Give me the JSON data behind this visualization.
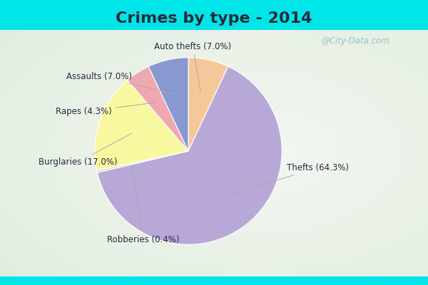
{
  "title": "Crimes by type - 2014",
  "title_fontsize": 16,
  "title_fontweight": "bold",
  "title_color": "#2a2a3a",
  "background_cyan": "#00e5e8",
  "background_inner": "#e0f0e8",
  "labels_ordered": [
    "Auto thefts",
    "Thefts",
    "Robberies",
    "Burglaries",
    "Rapes",
    "Assaults"
  ],
  "values_ordered": [
    7.0,
    64.3,
    0.4,
    17.0,
    4.3,
    7.0
  ],
  "colors_ordered": [
    "#f5c89a",
    "#b8a8d8",
    "#d8e8c0",
    "#f8f8a0",
    "#f0a8b0",
    "#8898d0"
  ],
  "label_texts": {
    "Auto thefts": "Auto thefts (7.0%)",
    "Thefts": "Thefts (64.3%)",
    "Robberies": "Robberies (0.4%)",
    "Burglaries": "Burglaries (17.0%)",
    "Rapes": "Rapes (4.3%)",
    "Assaults": "Assaults (7.0%)"
  },
  "watermark": "@City-Data.com",
  "watermark_color": "#8ab8c8",
  "label_color": "#2a2a3a",
  "label_fontsize": 8.5,
  "startangle": 90
}
